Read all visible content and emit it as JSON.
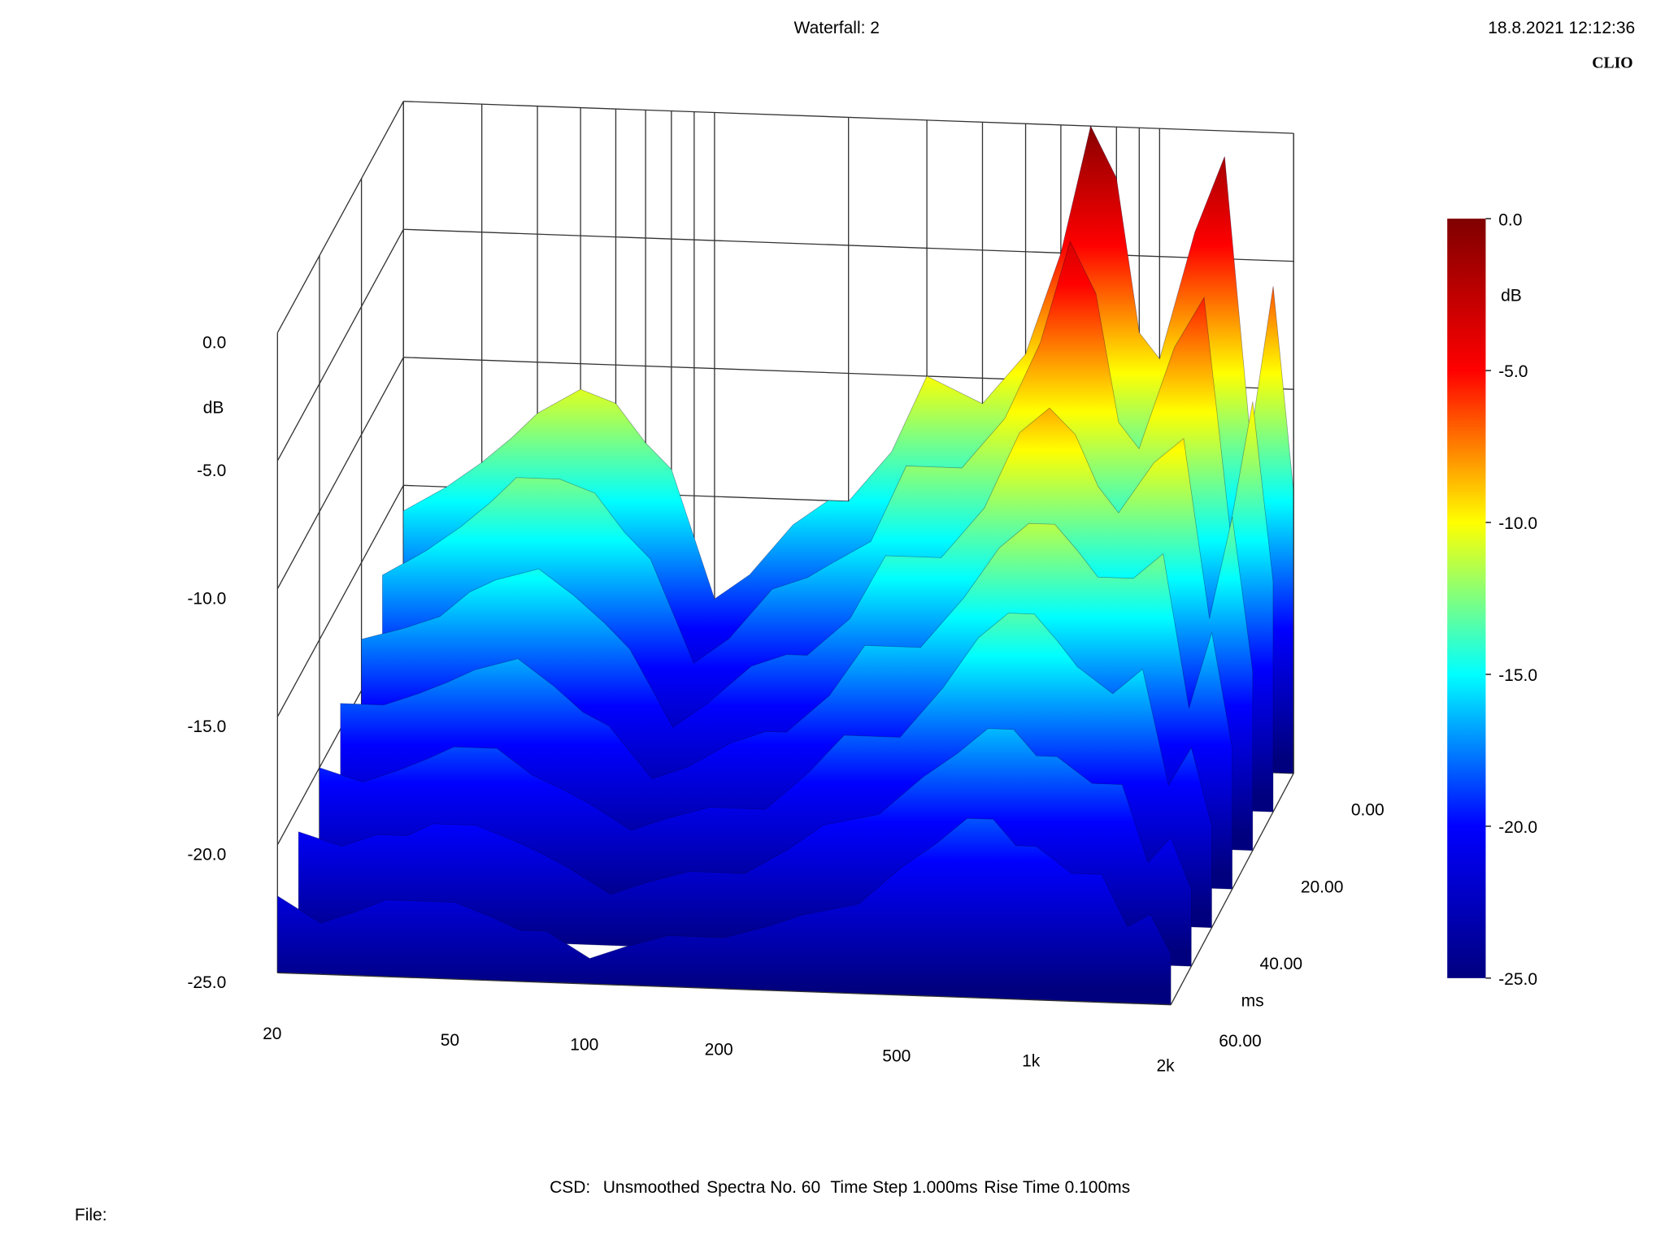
{
  "chart_data": {
    "type": "waterfall",
    "title": "Waterfall: 2",
    "timestamp": "18.8.2021 12:12:36",
    "brand": "CLIO",
    "y_label": "dB",
    "z_label": "ms",
    "colorbar_label": "dB",
    "xscale": "log",
    "xlim": [
      20,
      2000
    ],
    "xticks": [
      20,
      50,
      100,
      200,
      500,
      {
        "value": 1000,
        "label": "1k"
      },
      {
        "value": 2000,
        "label": "2k"
      }
    ],
    "xgrid": [
      20,
      30,
      40,
      50,
      60,
      70,
      80,
      90,
      100,
      200,
      300,
      400,
      500,
      600,
      700,
      800,
      900,
      1000,
      2000
    ],
    "ylim": [
      -25,
      0
    ],
    "yticks": [
      {
        "value": 0,
        "label": "0.0"
      },
      {
        "value": -5,
        "label": "-5.0"
      },
      {
        "value": -10,
        "label": "-10.0"
      },
      {
        "value": -15,
        "label": "-15.0"
      },
      {
        "value": -20,
        "label": "-20.0"
      },
      {
        "value": -25,
        "label": "-25.0"
      }
    ],
    "zlim": [
      0,
      60
    ],
    "zticks": [
      {
        "value": 0,
        "label": "0.00"
      },
      {
        "value": 20,
        "label": "20.00"
      },
      {
        "value": 40,
        "label": "40.00"
      },
      {
        "value": 60,
        "label": "60.00"
      }
    ],
    "colorbar_ticks": [
      {
        "value": 0,
        "label": "0.0"
      },
      {
        "value": -5,
        "label": "-5.0"
      },
      {
        "value": -10,
        "label": "-10.0"
      },
      {
        "value": -15,
        "label": "-15.0"
      },
      {
        "value": -20,
        "label": "-20.0"
      },
      {
        "value": -25,
        "label": "-25.0"
      }
    ],
    "colormap": [
      "#00007f",
      "#0000ff",
      "#00ffff",
      "#ffff00",
      "#ff0000",
      "#7f0000"
    ],
    "x": [
      20,
      25,
      30,
      35,
      40,
      50,
      60,
      70,
      80,
      100,
      120,
      150,
      180,
      200,
      250,
      300,
      400,
      500,
      600,
      700,
      800,
      900,
      1000,
      1200,
      1400,
      1600,
      1800,
      2000
    ],
    "slices": [
      {
        "t": 0,
        "values": [
          -16,
          -15,
          -14,
          -13,
          -12,
          -11,
          -11.5,
          -13,
          -14,
          -19,
          -18,
          -16,
          -15,
          -15,
          -13,
          -10,
          -11,
          -9,
          -5,
          0,
          -2,
          -8,
          -9,
          -4,
          -1,
          -12,
          -6,
          -14
        ]
      },
      {
        "t": 10,
        "values": [
          -17,
          -16,
          -15,
          -14,
          -13,
          -13,
          -13.5,
          -15,
          -16,
          -20,
          -19,
          -17,
          -16.5,
          -16,
          -15,
          -12,
          -12,
          -10,
          -7,
          -3,
          -5,
          -10,
          -11,
          -7,
          -5,
          -14,
          -9,
          -16
        ]
      },
      {
        "t": 20,
        "values": [
          -18,
          -17.5,
          -17,
          -16,
          -15.5,
          -15,
          -16,
          -17,
          -18,
          -21,
          -20,
          -18.5,
          -18,
          -18,
          -16.5,
          -14,
          -14,
          -12,
          -9,
          -8,
          -9,
          -11,
          -12,
          -10,
          -9,
          -16,
          -12,
          -18
        ]
      },
      {
        "t": 30,
        "values": [
          -19,
          -19,
          -18.5,
          -18,
          -17.5,
          -17,
          -18,
          -19,
          -19.5,
          -21.5,
          -21,
          -20,
          -19.5,
          -19.5,
          -18,
          -16,
          -16,
          -14,
          -12,
          -11,
          -11,
          -12,
          -13,
          -13,
          -12,
          -18,
          -15,
          -19.5
        ]
      },
      {
        "t": 40,
        "values": [
          -20,
          -20.5,
          -20,
          -19.5,
          -19,
          -19,
          -20,
          -20.5,
          -21,
          -22,
          -21.5,
          -21,
          -21,
          -21,
          -19.5,
          -18,
          -18,
          -16,
          -14,
          -13,
          -13,
          -14,
          -15,
          -16,
          -15,
          -19.5,
          -18,
          -21
        ]
      },
      {
        "t": 50,
        "values": [
          -21,
          -21.5,
          -21,
          -21,
          -20.5,
          -20.5,
          -21,
          -21.5,
          -22,
          -23,
          -22.5,
          -22,
          -22,
          -22,
          -21,
          -20,
          -19.5,
          -18,
          -17,
          -16,
          -16,
          -17,
          -17,
          -18,
          -18,
          -21,
          -20,
          -22
        ]
      },
      {
        "t": 60,
        "values": [
          -22,
          -23,
          -22.5,
          -22,
          -22,
          -22,
          -22.5,
          -23,
          -23,
          -24,
          -23.5,
          -23,
          -23,
          -23,
          -22.5,
          -22,
          -21.5,
          -20,
          -19,
          -18,
          -18,
          -19,
          -19,
          -20,
          -20,
          -22,
          -21.5,
          -23
        ]
      }
    ],
    "footer": [
      "CSD:",
      "Unsmoothed",
      "Spectra No. 60",
      "Time Step 1.000ms",
      "Rise Time 0.100ms"
    ],
    "file_label": "File:"
  }
}
